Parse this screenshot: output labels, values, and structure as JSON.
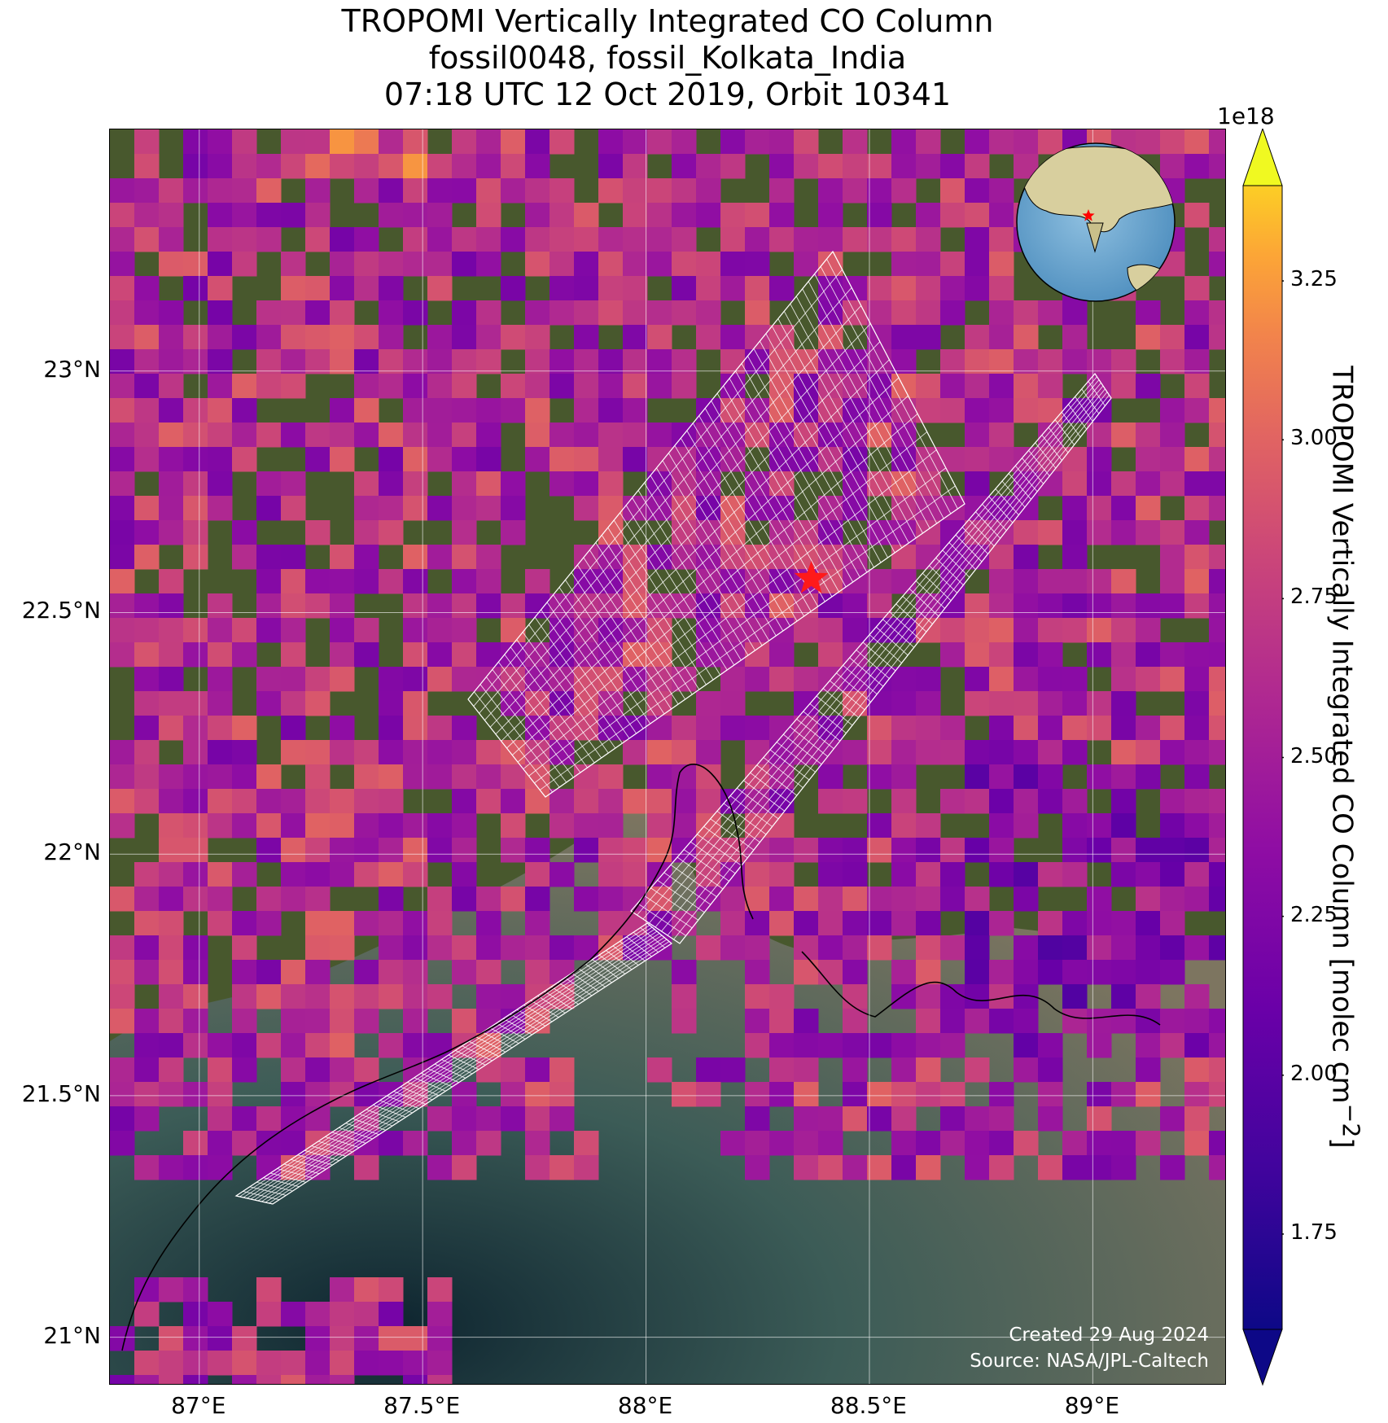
{
  "title_lines": [
    "TROPOMI Vertically Integrated CO Column",
    "fossil0048, fossil_Kolkata_India",
    "07:18 UTC 12 Oct 2019, Orbit 10341"
  ],
  "map": {
    "lon_range": [
      86.8,
      89.3
    ],
    "lat_range": [
      20.9,
      23.5
    ],
    "lat_ticks": [
      {
        "value": 23.0,
        "label": "23°N"
      },
      {
        "value": 22.5,
        "label": "22.5°N"
      },
      {
        "value": 22.0,
        "label": "22°N"
      },
      {
        "value": 21.5,
        "label": "21.5°N"
      },
      {
        "value": 21.0,
        "label": "21°N"
      }
    ],
    "lon_ticks": [
      {
        "value": 87.0,
        "label": "87°E"
      },
      {
        "value": 87.5,
        "label": "87.5°E"
      },
      {
        "value": 88.0,
        "label": "88°E"
      },
      {
        "value": 88.5,
        "label": "88.5°E"
      },
      {
        "value": 89.0,
        "label": "89°E"
      }
    ],
    "gridlines": true,
    "target_marker": {
      "lon": 88.37,
      "lat": 22.57,
      "symbol": "star",
      "color": "#ff0000"
    },
    "basemap": "satellite imagery",
    "colormap": "plasma",
    "inset_globe": {
      "placement": "top-right",
      "marker_color": "#ff0000"
    }
  },
  "colorbar": {
    "exponent_label": "1e18",
    "min": 1.6,
    "max": 3.4,
    "ticks": [
      "1.75",
      "2.00",
      "2.25",
      "2.50",
      "2.75",
      "3.00",
      "3.25"
    ],
    "tick_values": [
      1.75,
      2.0,
      2.25,
      2.5,
      2.75,
      3.0,
      3.25
    ],
    "label": "TROPOMI Vertically Integrated CO Column [molec cm",
    "label_exponent": "−2",
    "label_close": "]",
    "extend": "both"
  },
  "credits": {
    "created": "Created 29 Aug 2024",
    "source": "Source: NASA/JPL-Caltech"
  }
}
